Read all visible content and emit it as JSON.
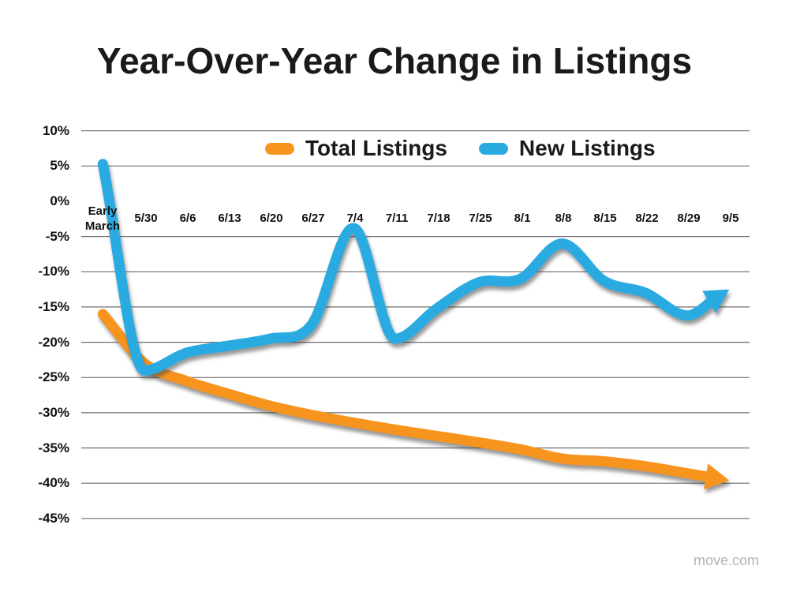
{
  "watermark": "move.com",
  "colors": {
    "total_listings": "#F7941E",
    "new_listings": "#29ABE2",
    "gridline": "#6E6E6E",
    "text": "#1A1A1A",
    "watermark": "#B3B3B3"
  },
  "chart_data": {
    "type": "line",
    "title": "Year-Over-Year Change in Listings",
    "xlabel": "",
    "ylabel": "",
    "ylim": [
      -45,
      10
    ],
    "grid": true,
    "legend_position": "top-center",
    "line_style": "smooth thick lines with drop shadows and arrowhead ends",
    "categories": [
      "Early March",
      "5/30",
      "6/6",
      "6/13",
      "6/20",
      "6/27",
      "7/4",
      "7/11",
      "7/18",
      "7/25",
      "8/1",
      "8/8",
      "8/15",
      "8/22",
      "8/29",
      "9/5"
    ],
    "series": [
      {
        "name": "Total Listings",
        "color": "#F7941E",
        "arrow_end": true,
        "values": [
          -16,
          -23,
          -25.5,
          -27.3,
          -29,
          -30.3,
          -31.4,
          -32.4,
          -33.3,
          -34.2,
          -35.2,
          -36.5,
          -36.9,
          -37.6,
          -38.6,
          -39.6
        ]
      },
      {
        "name": "New Listings",
        "color": "#29ABE2",
        "arrow_end": true,
        "values": [
          5.3,
          -24,
          -21.5,
          -20.5,
          -19.5,
          -17.5,
          -3.8,
          -19.5,
          -15.2,
          -11.5,
          -11,
          -6,
          -11.3,
          -13,
          -16.2,
          -12.5
        ]
      }
    ],
    "ytick_labels": [
      "10%",
      "5%",
      "0%",
      "-5%",
      "-10%",
      "-15%",
      "-20%",
      "-25%",
      "-30%",
      "-35%",
      "-40%",
      "-45%"
    ],
    "gridline_values": [
      10,
      5,
      -5,
      -10,
      -15,
      -20,
      -25,
      -30,
      -35,
      -40,
      -45
    ]
  }
}
